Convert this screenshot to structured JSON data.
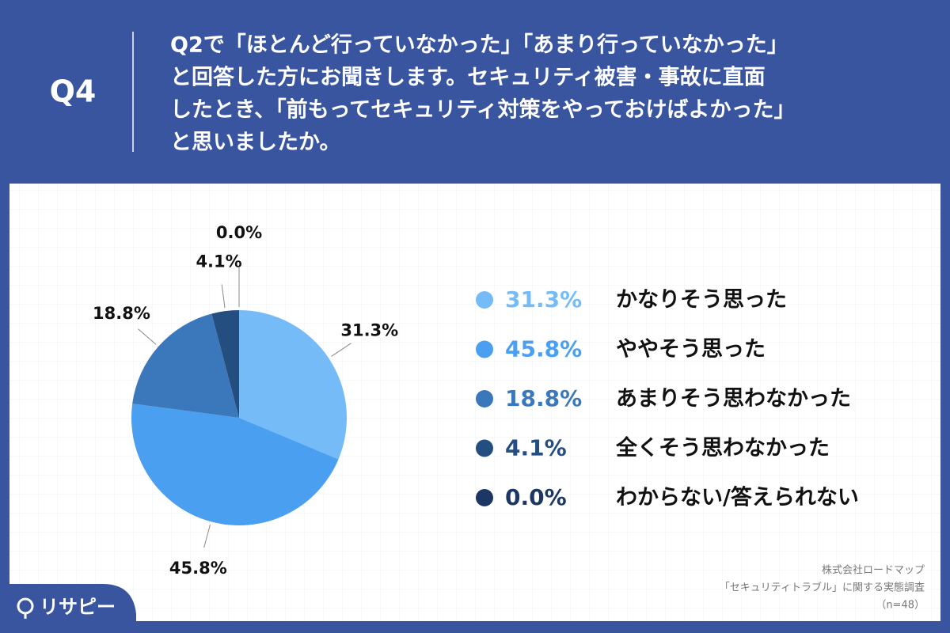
{
  "question_number": "Q4",
  "chart_data": {
    "type": "pie",
    "title": [
      "Q2で「ほとんど行っていなかった」「あまり行っていなかった」",
      "と回答した方にお聞きします。セキュリティ被害・事故に直面",
      "したとき、「前もってセキュリティ対策をやっておけばよかった」",
      "と思いましたか。"
    ],
    "categories": [
      "かなりそう思った",
      "ややそう思った",
      "あまりそう思わなかった",
      "全くそう思わなかった",
      "わからない/答えられない"
    ],
    "values": [
      31.3,
      45.8,
      18.8,
      4.1,
      0.0
    ],
    "value_labels": [
      "31.3%",
      "45.8%",
      "18.8%",
      "4.1%",
      "0.0%"
    ],
    "colors": [
      "#74bbf7",
      "#4b9ff0",
      "#3a78bb",
      "#244d80",
      "#1c3763"
    ]
  },
  "source": [
    "株式会社ロードマップ",
    "「セキュリティトラブル」に関する実態調査",
    "（n=48）"
  ],
  "logo": "リサピー"
}
